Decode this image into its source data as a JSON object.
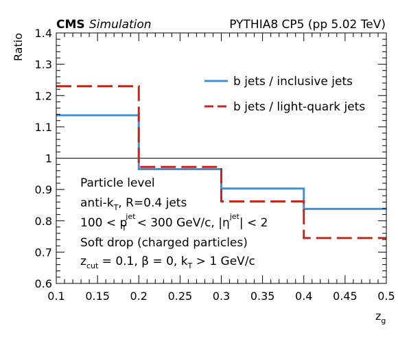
{
  "header": {
    "experiment": "CMS",
    "experiment_tag": "Simulation",
    "generator": "PYTHIA8 CP5 (pp 5.02 TeV)"
  },
  "annotations": {
    "line1": "Particle level",
    "line2": {
      "a": "anti-k",
      "sub": "T",
      "b": ", R=0.4 jets"
    },
    "line3": {
      "a": "100 < p",
      "sup": "jet",
      "sub": "T",
      "b": " < 300 GeV/c, |η",
      "sup2": "jet",
      "c": "| < 2"
    },
    "line4": "Soft drop (charged particles)",
    "line5": {
      "a": "z",
      "sub1": "cut",
      "b": " = 0.1, β = 0, k",
      "sub2": "T",
      "c": " > 1 GeV/c"
    }
  },
  "chart_data": {
    "type": "step",
    "xlabel": "z",
    "xlabel_sub": "g",
    "ylabel": "Ratio",
    "xlim": [
      0.1,
      0.5
    ],
    "ylim": [
      0.6,
      1.4
    ],
    "xticks": [
      "0.1",
      "0.15",
      "0.2",
      "0.25",
      "0.3",
      "0.35",
      "0.4",
      "0.45",
      "0.5"
    ],
    "yticks": [
      "0.6",
      "0.7",
      "0.8",
      "0.9",
      "1",
      "1.1",
      "1.2",
      "1.3",
      "1.4"
    ],
    "reference_line": 1.0,
    "legend_position": "upper-right",
    "bin_edges": [
      0.1,
      0.2,
      0.3,
      0.4,
      0.5
    ],
    "series": [
      {
        "name": "b jets / inclusive jets",
        "color": "#3d8fd8",
        "style": "solid",
        "values": [
          1.137,
          0.965,
          0.903,
          0.838
        ]
      },
      {
        "name": "b jets / light-quark jets",
        "color": "#c0281b",
        "style": "dashed",
        "values": [
          1.23,
          0.972,
          0.862,
          0.745
        ]
      }
    ]
  }
}
